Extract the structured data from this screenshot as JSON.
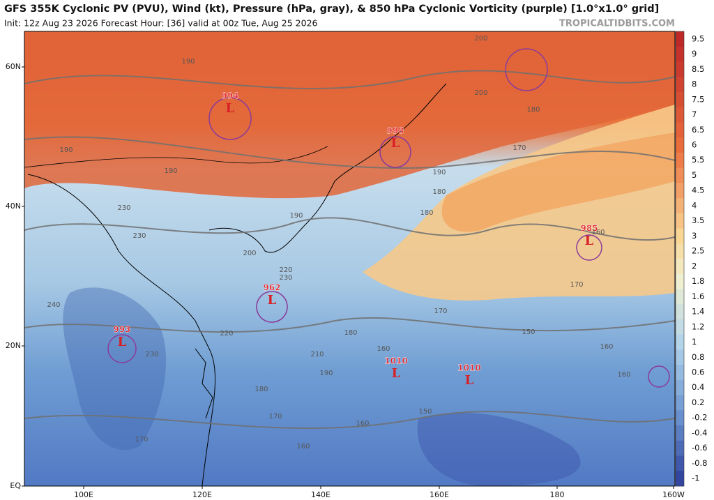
{
  "header": {
    "title": "GFS 355K Cyclonic PV (PVU), Wind (kt), Pressure (hPa, gray), & 850 hPa Cyclonic Vorticity (purple) [1.0°x1.0° grid]",
    "subtitle": "Init: 12z Aug 23 2026   Forecast Hour: [36]   valid at 00z Tue, Aug 25 2026",
    "credit": "TROPICALTIDBITS.COM"
  },
  "map": {
    "lat_labels": [
      "60N",
      "40N",
      "20N",
      "EQ"
    ],
    "lon_labels": [
      "100E",
      "120E",
      "140E",
      "160E",
      "180",
      "160W"
    ],
    "lows": [
      {
        "pressure": "994",
        "symbol": "L"
      },
      {
        "pressure": "998",
        "symbol": "L"
      },
      {
        "pressure": "985",
        "symbol": "L"
      },
      {
        "pressure": "962",
        "symbol": "L"
      },
      {
        "pressure": "993",
        "symbol": "L"
      },
      {
        "pressure": "1010",
        "symbol": "L"
      },
      {
        "pressure": "1010",
        "symbol": "L"
      }
    ],
    "contour_labels": [
      "190",
      "200",
      "200",
      "180",
      "170",
      "190",
      "190",
      "190",
      "180",
      "180",
      "190",
      "200",
      "220",
      "230",
      "230",
      "240",
      "220",
      "210",
      "190",
      "180",
      "160",
      "170",
      "170",
      "160",
      "150",
      "160",
      "160",
      "180",
      "230",
      "170",
      "160",
      "160",
      "150",
      "170",
      "230"
    ]
  },
  "colorbar": {
    "labels": [
      "9.5",
      "9",
      "8.5",
      "8",
      "7.5",
      "7",
      "6.5",
      "6",
      "5.5",
      "5",
      "4.5",
      "4",
      "3.5",
      "3",
      "2.5",
      "2",
      "1.8",
      "1.6",
      "1.4",
      "1.2",
      "1",
      "0.8",
      "0.6",
      "0.4",
      "0.2",
      "-0.2",
      "-0.4",
      "-0.6",
      "-0.8",
      "-1"
    ]
  }
}
